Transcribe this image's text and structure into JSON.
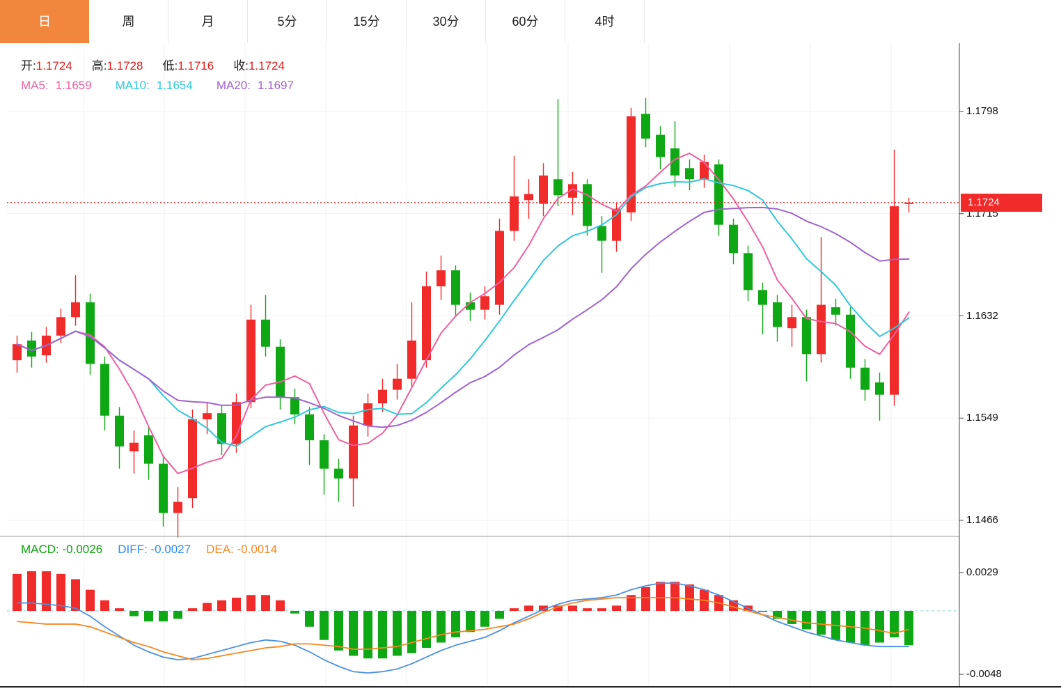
{
  "tabs": {
    "items": [
      "日",
      "周",
      "月",
      "5分",
      "15分",
      "30分",
      "60分",
      "4时"
    ],
    "active": "日"
  },
  "legend": {
    "ohlc": {
      "open_label": "开:",
      "open_value": "1.1724",
      "high_label": "高:",
      "high_value": "1.1728",
      "low_label": "低:",
      "low_value": "1.1716",
      "close_label": "收:",
      "close_value": "1.1724"
    },
    "ma": {
      "ma5_label": "MA5:",
      "ma5_value": "1.1659",
      "ma10_label": "MA10:",
      "ma10_value": "1.1654",
      "ma20_label": "MA20:",
      "ma20_value": "1.1697"
    },
    "macd": {
      "macd_label": "MACD:",
      "macd_value": "-0.0026",
      "diff_label": "DIFF:",
      "diff_value": "-0.0027",
      "dea_label": "DEA:",
      "dea_value": "-0.0014"
    }
  },
  "axis": {
    "main_ticks": [
      "1.1798",
      "1.1715",
      "1.1632",
      "1.1549",
      "1.1466"
    ],
    "macd_ticks": [
      "0.0029",
      "-0.0048"
    ],
    "price_tag": "1.1724"
  },
  "colors": {
    "up": "#f12a2a",
    "down": "#0fa815",
    "ma5": "#f0609e",
    "ma10": "#2ec8dc",
    "ma20": "#9f63ce",
    "diff": "#4a90e2",
    "dea": "#f5871f",
    "zero": "#7fd4d4",
    "active_tab": "#f0873c",
    "tag_bg": "#f12a2a"
  },
  "chart_data": {
    "type": "candlestick",
    "timeframe": "日",
    "current_price": 1.1724,
    "y_ticks": [
      1.1798,
      1.1715,
      1.1632,
      1.1549,
      1.1466
    ],
    "ma_periods": [
      5,
      10,
      20
    ],
    "legend_note": "red = up, green = down (CN convention)",
    "candles": [
      [
        1.1596,
        1.1616,
        1.1586,
        1.1609
      ],
      [
        1.1612,
        1.1619,
        1.159,
        1.1599
      ],
      [
        1.16,
        1.1623,
        1.1594,
        1.1616
      ],
      [
        1.1616,
        1.1638,
        1.161,
        1.1631
      ],
      [
        1.1631,
        1.1665,
        1.1624,
        1.1643
      ],
      [
        1.1643,
        1.165,
        1.1584,
        1.1593
      ],
      [
        1.1593,
        1.1599,
        1.1539,
        1.1551
      ],
      [
        1.1551,
        1.1558,
        1.1508,
        1.1526
      ],
      [
        1.1522,
        1.1539,
        1.1504,
        1.1529
      ],
      [
        1.1535,
        1.1542,
        1.1499,
        1.1512
      ],
      [
        1.1512,
        1.1518,
        1.1461,
        1.1472
      ],
      [
        1.1472,
        1.1493,
        1.1452,
        1.1481
      ],
      [
        1.1484,
        1.1556,
        1.1476,
        1.1548
      ],
      [
        1.1548,
        1.1561,
        1.1536,
        1.1553
      ],
      [
        1.1553,
        1.1559,
        1.1519,
        1.1528
      ],
      [
        1.1528,
        1.1569,
        1.1521,
        1.1562
      ],
      [
        1.1562,
        1.1641,
        1.1557,
        1.1629
      ],
      [
        1.1629,
        1.1649,
        1.1599,
        1.1607
      ],
      [
        1.1607,
        1.1613,
        1.1556,
        1.1566
      ],
      [
        1.1566,
        1.1573,
        1.1544,
        1.1552
      ],
      [
        1.1552,
        1.1558,
        1.1511,
        1.1531
      ],
      [
        1.1531,
        1.1536,
        1.1487,
        1.1508
      ],
      [
        1.1508,
        1.1516,
        1.1481,
        1.15
      ],
      [
        1.15,
        1.1551,
        1.1477,
        1.1543
      ],
      [
        1.1543,
        1.1569,
        1.1534,
        1.1561
      ],
      [
        1.1561,
        1.1581,
        1.1554,
        1.1572
      ],
      [
        1.1572,
        1.1593,
        1.1564,
        1.1581
      ],
      [
        1.1581,
        1.1643,
        1.1574,
        1.1612
      ],
      [
        1.1596,
        1.1668,
        1.159,
        1.1656
      ],
      [
        1.1656,
        1.1681,
        1.1645,
        1.1669
      ],
      [
        1.1669,
        1.1673,
        1.1631,
        1.1641
      ],
      [
        1.1643,
        1.1651,
        1.1628,
        1.1637
      ],
      [
        1.1637,
        1.1656,
        1.1629,
        1.1648
      ],
      [
        1.1641,
        1.1711,
        1.1633,
        1.1701
      ],
      [
        1.1701,
        1.1762,
        1.1693,
        1.1729
      ],
      [
        1.1726,
        1.1743,
        1.1711,
        1.1731
      ],
      [
        1.1723,
        1.1756,
        1.1713,
        1.1746
      ],
      [
        1.1743,
        1.1808,
        1.1721,
        1.173
      ],
      [
        1.1728,
        1.1749,
        1.1714,
        1.1739
      ],
      [
        1.1739,
        1.1743,
        1.1697,
        1.1705
      ],
      [
        1.1705,
        1.1713,
        1.1667,
        1.1693
      ],
      [
        1.1693,
        1.1724,
        1.1684,
        1.1719
      ],
      [
        1.1716,
        1.1801,
        1.1709,
        1.1794
      ],
      [
        1.1796,
        1.1809,
        1.1769,
        1.1776
      ],
      [
        1.1779,
        1.1786,
        1.1751,
        1.1761
      ],
      [
        1.1768,
        1.179,
        1.1737,
        1.1746
      ],
      [
        1.1752,
        1.1759,
        1.1734,
        1.1743
      ],
      [
        1.1743,
        1.1763,
        1.1736,
        1.1757
      ],
      [
        1.1755,
        1.1759,
        1.1697,
        1.1706
      ],
      [
        1.1706,
        1.1711,
        1.1674,
        1.1683
      ],
      [
        1.1683,
        1.1689,
        1.1644,
        1.1653
      ],
      [
        1.1653,
        1.1659,
        1.1617,
        1.1641
      ],
      [
        1.1643,
        1.1649,
        1.1611,
        1.1623
      ],
      [
        1.1622,
        1.1641,
        1.1607,
        1.1631
      ],
      [
        1.1631,
        1.1637,
        1.1579,
        1.1601
      ],
      [
        1.1601,
        1.1696,
        1.1594,
        1.1641
      ],
      [
        1.1639,
        1.1646,
        1.1624,
        1.1633
      ],
      [
        1.1633,
        1.1639,
        1.1581,
        1.159
      ],
      [
        1.159,
        1.1597,
        1.1563,
        1.1572
      ],
      [
        1.1578,
        1.1586,
        1.1547,
        1.1568
      ],
      [
        1.1568,
        1.1767,
        1.1559,
        1.1721
      ],
      [
        1.1724,
        1.1728,
        1.1716,
        1.1724
      ]
    ],
    "macd": {
      "y_ticks": [
        0.0029,
        -0.0048
      ],
      "diff": [
        0.0006,
        0.0006,
        0.0005,
        0.0004,
        0.0002,
        -0.0004,
        -0.0012,
        -0.0019,
        -0.0026,
        -0.0031,
        -0.0035,
        -0.0037,
        -0.0036,
        -0.0033,
        -0.003,
        -0.0027,
        -0.0024,
        -0.0022,
        -0.0023,
        -0.0026,
        -0.0031,
        -0.0037,
        -0.0042,
        -0.0046,
        -0.0047,
        -0.0046,
        -0.0044,
        -0.004,
        -0.0035,
        -0.003,
        -0.0026,
        -0.0023,
        -0.002,
        -0.0015,
        -0.0009,
        -0.0004,
        0.0001,
        0.0005,
        0.0008,
        0.0009,
        0.001,
        0.0012,
        0.0016,
        0.0019,
        0.0021,
        0.0021,
        0.0019,
        0.0016,
        0.0012,
        0.0007,
        0.0002,
        -0.0003,
        -0.0008,
        -0.0012,
        -0.0016,
        -0.0019,
        -0.0022,
        -0.0024,
        -0.0026,
        -0.0027,
        -0.0027,
        -0.0027
      ],
      "dea": [
        -0.0008,
        -0.0009,
        -0.001,
        -0.001,
        -0.001,
        -0.0012,
        -0.0016,
        -0.002,
        -0.0024,
        -0.0027,
        -0.0031,
        -0.0034,
        -0.0037,
        -0.0036,
        -0.0034,
        -0.0032,
        -0.003,
        -0.0028,
        -0.0027,
        -0.0025,
        -0.0025,
        -0.0026,
        -0.0027,
        -0.0029,
        -0.0029,
        -0.0028,
        -0.0027,
        -0.0024,
        -0.0021,
        -0.0018,
        -0.0016,
        -0.0015,
        -0.0014,
        -0.0012,
        -0.001,
        -0.0006,
        -0.0001,
        0.0003,
        0.0006,
        0.0008,
        0.0009,
        0.001,
        0.001,
        0.001,
        0.001,
        0.001,
        0.0009,
        0.0008,
        0.0006,
        0.0003,
        0.0,
        -0.0003,
        -0.0005,
        -0.0007,
        -0.0009,
        -0.001,
        -0.0011,
        -0.0012,
        -0.0013,
        -0.0015,
        -0.0017,
        -0.0014
      ],
      "hist": [
        0.0028,
        0.003,
        0.003,
        0.0028,
        0.0024,
        0.0016,
        0.0008,
        0.0002,
        -0.0004,
        -0.0008,
        -0.0008,
        -0.0006,
        0.0002,
        0.0006,
        0.0008,
        0.001,
        0.0012,
        0.0012,
        0.0008,
        -0.0002,
        -0.0012,
        -0.0022,
        -0.003,
        -0.0034,
        -0.0036,
        -0.0036,
        -0.0034,
        -0.0032,
        -0.0028,
        -0.0024,
        -0.002,
        -0.0016,
        -0.0012,
        -0.0006,
        0.0002,
        0.0004,
        0.0004,
        0.0004,
        0.0004,
        0.0002,
        0.0002,
        0.0004,
        0.0012,
        0.0018,
        0.0022,
        0.0022,
        0.002,
        0.0016,
        0.0012,
        0.0008,
        0.0004,
        0.0,
        -0.0006,
        -0.001,
        -0.0014,
        -0.0018,
        -0.0022,
        -0.0024,
        -0.0026,
        -0.0024,
        -0.002,
        -0.0026
      ]
    }
  }
}
